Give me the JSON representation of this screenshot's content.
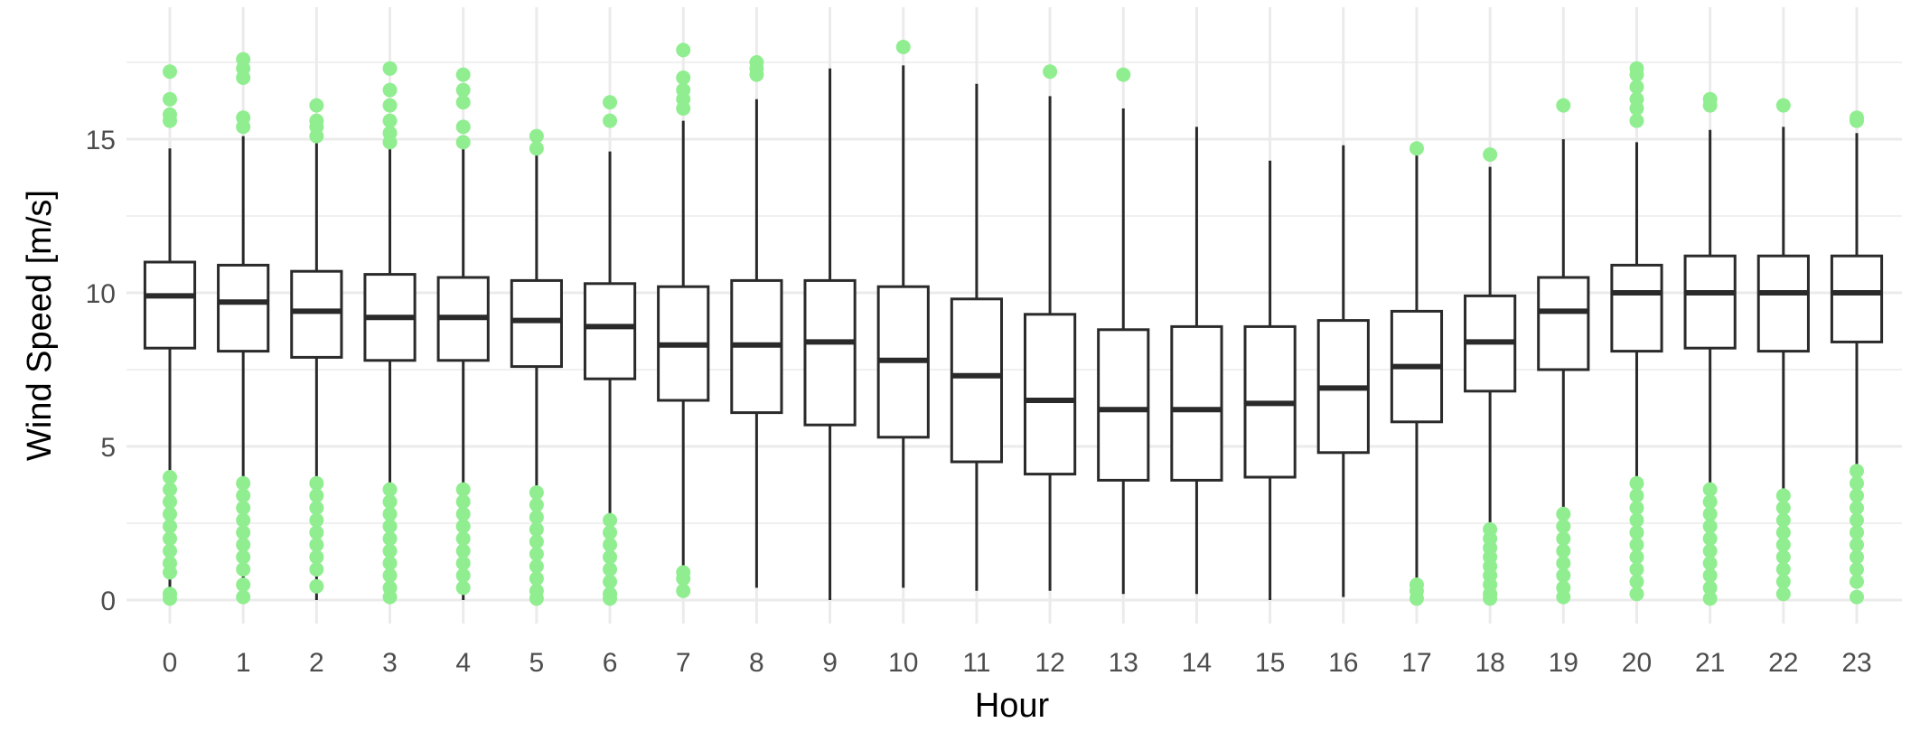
{
  "chart_data": {
    "type": "box",
    "xlabel": "Hour",
    "ylabel": "Wind Speed [m/s]",
    "categories": [
      "0",
      "1",
      "2",
      "3",
      "4",
      "5",
      "6",
      "7",
      "8",
      "9",
      "10",
      "11",
      "12",
      "13",
      "14",
      "15",
      "16",
      "17",
      "18",
      "19",
      "20",
      "21",
      "22",
      "23"
    ],
    "yticks": [
      0,
      5,
      10,
      15
    ],
    "ylim": [
      -0.7,
      19.0
    ],
    "grid": true,
    "legend": "none",
    "box_color": "#2a2a2a",
    "outlier_color": "#90ee90",
    "grid_color": "#ebebeb",
    "boxes": [
      {
        "hour": "0",
        "whisker_low": 0.0,
        "q1": 8.2,
        "median": 9.9,
        "q3": 11.0,
        "whisker_high": 14.7,
        "outliers": [
          4.0,
          3.6,
          3.2,
          2.8,
          2.4,
          2.0,
          1.6,
          1.2,
          0.9,
          0.2,
          0.05,
          15.6,
          15.8,
          16.3,
          17.2
        ]
      },
      {
        "hour": "1",
        "whisker_low": 0.0,
        "q1": 8.1,
        "median": 9.7,
        "q3": 10.9,
        "whisker_high": 15.1,
        "outliers": [
          3.8,
          3.4,
          3.0,
          2.6,
          2.2,
          1.8,
          1.4,
          1.0,
          0.5,
          0.1,
          15.4,
          15.7,
          17.0,
          17.3,
          17.6
        ]
      },
      {
        "hour": "2",
        "whisker_low": 0.0,
        "q1": 7.9,
        "median": 9.4,
        "q3": 10.7,
        "whisker_high": 14.9,
        "outliers": [
          3.8,
          3.4,
          3.0,
          2.6,
          2.2,
          1.8,
          1.4,
          1.0,
          0.45,
          15.1,
          15.4,
          15.6,
          16.1
        ]
      },
      {
        "hour": "3",
        "whisker_low": 0.0,
        "q1": 7.8,
        "median": 9.2,
        "q3": 10.6,
        "whisker_high": 14.7,
        "outliers": [
          3.6,
          3.2,
          2.8,
          2.4,
          2.0,
          1.6,
          1.2,
          0.8,
          0.4,
          0.1,
          14.9,
          15.2,
          15.6,
          16.1,
          16.6,
          17.3
        ]
      },
      {
        "hour": "4",
        "whisker_low": 0.0,
        "q1": 7.8,
        "median": 9.2,
        "q3": 10.5,
        "whisker_high": 14.7,
        "outliers": [
          3.6,
          3.2,
          2.8,
          2.4,
          2.0,
          1.6,
          1.2,
          0.8,
          0.4,
          14.9,
          15.4,
          16.2,
          16.6,
          17.1
        ]
      },
      {
        "hour": "5",
        "whisker_low": 0.0,
        "q1": 7.6,
        "median": 9.1,
        "q3": 10.4,
        "whisker_high": 14.6,
        "outliers": [
          3.5,
          3.1,
          2.7,
          2.3,
          1.9,
          1.5,
          1.1,
          0.7,
          0.3,
          0.05,
          14.7,
          15.1
        ]
      },
      {
        "hour": "6",
        "whisker_low": 0.0,
        "q1": 7.2,
        "median": 8.9,
        "q3": 10.3,
        "whisker_high": 14.6,
        "outliers": [
          2.6,
          2.2,
          1.8,
          1.4,
          1.0,
          0.6,
          0.2,
          0.05,
          15.6,
          16.2
        ]
      },
      {
        "hour": "7",
        "whisker_low": 1.0,
        "q1": 6.5,
        "median": 8.3,
        "q3": 10.2,
        "whisker_high": 15.6,
        "outliers": [
          0.9,
          0.7,
          0.3,
          16.0,
          16.3,
          16.6,
          17.0,
          17.9
        ]
      },
      {
        "hour": "8",
        "whisker_low": 0.4,
        "q1": 6.1,
        "median": 8.3,
        "q3": 10.4,
        "whisker_high": 16.3,
        "outliers": [
          17.1,
          17.3,
          17.5
        ]
      },
      {
        "hour": "9",
        "whisker_low": 0.0,
        "q1": 5.7,
        "median": 8.4,
        "q3": 10.4,
        "whisker_high": 17.3,
        "outliers": []
      },
      {
        "hour": "10",
        "whisker_low": 0.4,
        "q1": 5.3,
        "median": 7.8,
        "q3": 10.2,
        "whisker_high": 17.4,
        "outliers": [
          18.0
        ]
      },
      {
        "hour": "11",
        "whisker_low": 0.3,
        "q1": 4.5,
        "median": 7.3,
        "q3": 9.8,
        "whisker_high": 16.8,
        "outliers": []
      },
      {
        "hour": "12",
        "whisker_low": 0.3,
        "q1": 4.1,
        "median": 6.5,
        "q3": 9.3,
        "whisker_high": 16.4,
        "outliers": [
          17.2
        ]
      },
      {
        "hour": "13",
        "whisker_low": 0.2,
        "q1": 3.9,
        "median": 6.2,
        "q3": 8.8,
        "whisker_high": 16.0,
        "outliers": [
          17.1
        ]
      },
      {
        "hour": "14",
        "whisker_low": 0.2,
        "q1": 3.9,
        "median": 6.2,
        "q3": 8.9,
        "whisker_high": 15.4,
        "outliers": []
      },
      {
        "hour": "15",
        "whisker_low": 0.0,
        "q1": 4.0,
        "median": 6.4,
        "q3": 8.9,
        "whisker_high": 14.3,
        "outliers": []
      },
      {
        "hour": "16",
        "whisker_low": 0.1,
        "q1": 4.8,
        "median": 6.9,
        "q3": 9.1,
        "whisker_high": 14.8,
        "outliers": []
      },
      {
        "hour": "17",
        "whisker_low": 0.6,
        "q1": 5.8,
        "median": 7.6,
        "q3": 9.4,
        "whisker_high": 14.6,
        "outliers": [
          0.5,
          0.3,
          0.05,
          14.7
        ]
      },
      {
        "hour": "18",
        "whisker_low": 2.4,
        "q1": 6.8,
        "median": 8.4,
        "q3": 9.9,
        "whisker_high": 14.1,
        "outliers": [
          2.3,
          2.0,
          1.7,
          1.4,
          1.1,
          0.8,
          0.5,
          0.2,
          0.05,
          14.5
        ]
      },
      {
        "hour": "19",
        "whisker_low": 2.9,
        "q1": 7.5,
        "median": 9.4,
        "q3": 10.5,
        "whisker_high": 15.0,
        "outliers": [
          2.8,
          2.4,
          2.0,
          1.6,
          1.2,
          0.8,
          0.4,
          0.1,
          16.1
        ]
      },
      {
        "hour": "20",
        "whisker_low": 3.9,
        "q1": 8.1,
        "median": 10.0,
        "q3": 10.9,
        "whisker_high": 14.9,
        "outliers": [
          3.8,
          3.4,
          3.0,
          2.6,
          2.2,
          1.8,
          1.4,
          1.0,
          0.6,
          0.2,
          15.6,
          16.0,
          16.3,
          16.7,
          17.1,
          17.3
        ]
      },
      {
        "hour": "21",
        "whisker_low": 3.7,
        "q1": 8.2,
        "median": 10.0,
        "q3": 11.2,
        "whisker_high": 15.3,
        "outliers": [
          3.6,
          3.2,
          2.8,
          2.4,
          2.0,
          1.6,
          1.2,
          0.8,
          0.4,
          0.05,
          16.1,
          16.3
        ]
      },
      {
        "hour": "22",
        "whisker_low": 3.5,
        "q1": 8.1,
        "median": 10.0,
        "q3": 11.2,
        "whisker_high": 15.4,
        "outliers": [
          3.4,
          3.0,
          2.6,
          2.2,
          1.8,
          1.4,
          1.0,
          0.6,
          0.2,
          16.1
        ]
      },
      {
        "hour": "23",
        "whisker_low": 4.3,
        "q1": 8.4,
        "median": 10.0,
        "q3": 11.2,
        "whisker_high": 15.2,
        "outliers": [
          4.2,
          3.8,
          3.4,
          3.0,
          2.6,
          2.2,
          1.8,
          1.4,
          1.0,
          0.6,
          0.1,
          15.6,
          15.7
        ]
      }
    ]
  }
}
